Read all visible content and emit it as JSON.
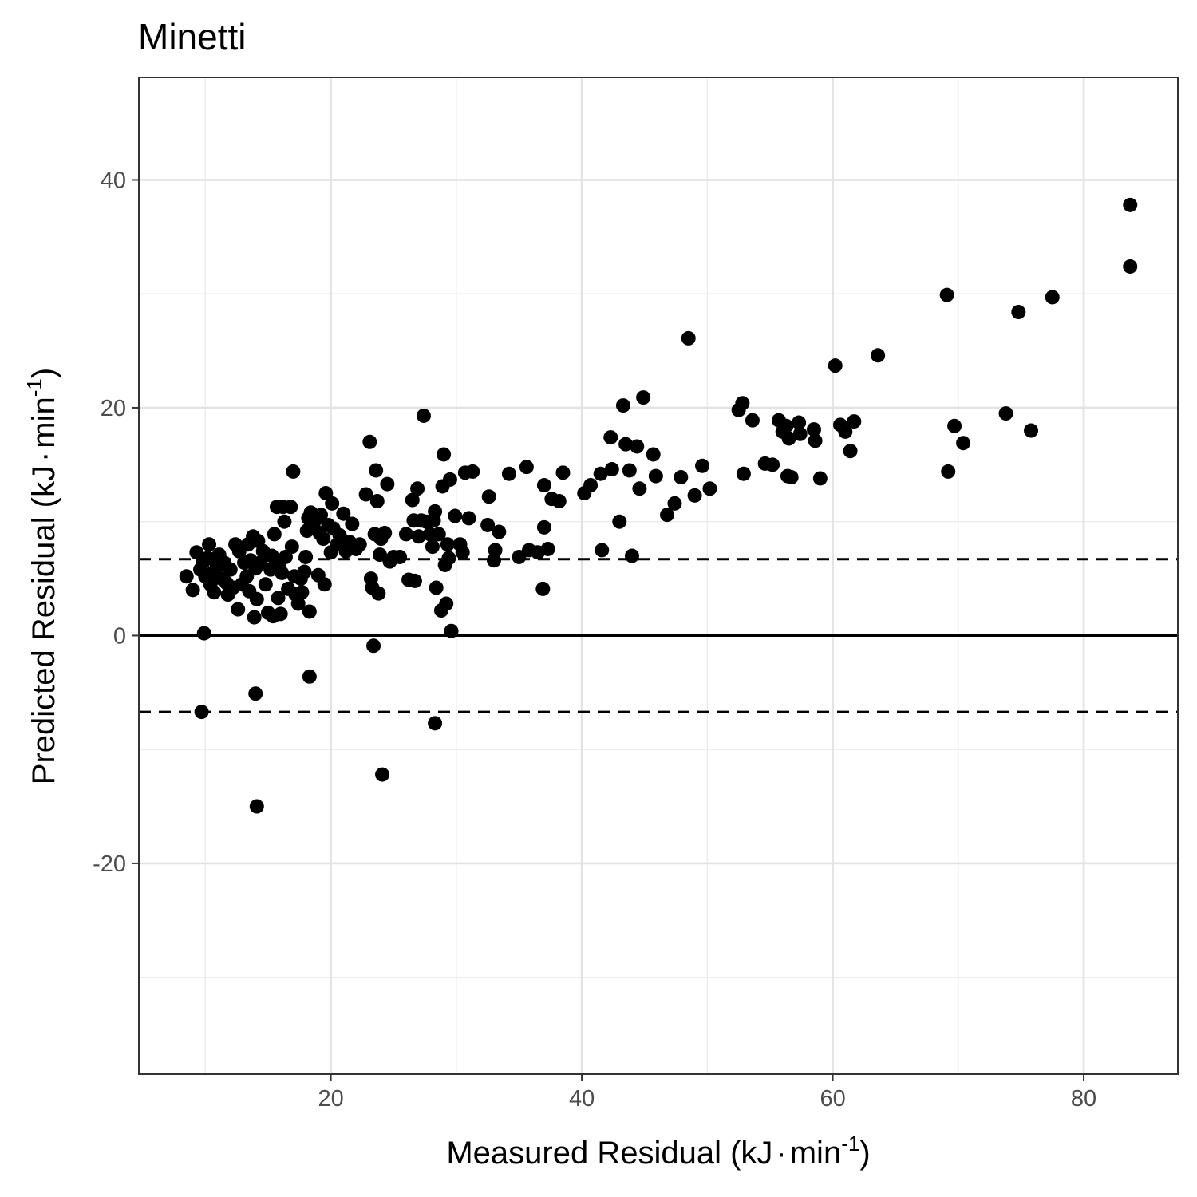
{
  "chart_data": {
    "type": "scatter",
    "title": "Minetti",
    "xlabel": "Measured Residual (kJ·min-1)",
    "xlabel_main": "Measured Residual (kJ",
    "xlabel_unit": "min",
    "xlabel_exp": "-1",
    "xlabel_close": ")",
    "ylabel": "Predicted Residual (kJ·min-1)",
    "ylabel_main": "Predicted Residual (kJ",
    "ylabel_unit": "min",
    "ylabel_exp": "-1",
    "ylabel_close": ")",
    "xlim": [
      4.7,
      87.5
    ],
    "ylim": [
      -38.5,
      49.0
    ],
    "x_ticks": [
      20,
      40,
      60,
      80
    ],
    "x_tick_labels": [
      "20",
      "40",
      "60",
      "80"
    ],
    "x_minor_ticks": [
      10,
      30,
      50,
      70
    ],
    "y_ticks": [
      -20,
      0,
      20,
      40
    ],
    "y_tick_labels": [
      "-20",
      "0",
      "20",
      "40"
    ],
    "y_minor_ticks": [
      -30,
      -10,
      10,
      30
    ],
    "grid": true,
    "reference_lines": [
      {
        "y": 0,
        "style": "solid"
      },
      {
        "y": 6.7,
        "style": "dashed"
      },
      {
        "y": -6.7,
        "style": "dashed"
      }
    ],
    "point_color": "#000000",
    "points": [
      [
        8.5,
        5.2
      ],
      [
        9.0,
        4.0
      ],
      [
        9.3,
        7.3
      ],
      [
        9.6,
        5.8
      ],
      [
        9.8,
        6.4
      ],
      [
        9.9,
        0.2
      ],
      [
        9.7,
        -6.7
      ],
      [
        10.0,
        5.2
      ],
      [
        10.2,
        6.8
      ],
      [
        10.3,
        8.0
      ],
      [
        10.4,
        4.5
      ],
      [
        10.6,
        5.5
      ],
      [
        10.7,
        3.8
      ],
      [
        10.9,
        6.0
      ],
      [
        11.1,
        7.1
      ],
      [
        11.3,
        5.0
      ],
      [
        11.5,
        6.4
      ],
      [
        11.7,
        4.6
      ],
      [
        11.8,
        3.6
      ],
      [
        12.0,
        5.8
      ],
      [
        12.2,
        4.2
      ],
      [
        12.4,
        8.0
      ],
      [
        12.6,
        2.3
      ],
      [
        12.7,
        7.4
      ],
      [
        12.9,
        4.5
      ],
      [
        13.1,
        6.4
      ],
      [
        13.3,
        5.2
      ],
      [
        13.4,
        8.0
      ],
      [
        13.5,
        3.9
      ],
      [
        13.6,
        6.6
      ],
      [
        13.8,
        8.7
      ],
      [
        13.9,
        1.6
      ],
      [
        14.0,
        5.9
      ],
      [
        14.1,
        3.2
      ],
      [
        14.2,
        8.3
      ],
      [
        14.0,
        -5.1
      ],
      [
        14.1,
        -15.0
      ],
      [
        14.4,
        6.4
      ],
      [
        14.6,
        7.4
      ],
      [
        14.8,
        4.5
      ],
      [
        15.0,
        2.0
      ],
      [
        15.2,
        5.8
      ],
      [
        15.3,
        7.0
      ],
      [
        15.4,
        1.7
      ],
      [
        15.5,
        8.9
      ],
      [
        15.7,
        11.3
      ],
      [
        15.8,
        3.3
      ],
      [
        15.9,
        6.3
      ],
      [
        16.0,
        1.9
      ],
      [
        16.1,
        5.5
      ],
      [
        16.2,
        11.3
      ],
      [
        16.3,
        10.0
      ],
      [
        16.4,
        6.9
      ],
      [
        16.6,
        4.1
      ],
      [
        16.8,
        11.3
      ],
      [
        16.9,
        7.8
      ],
      [
        17.0,
        14.4
      ],
      [
        17.1,
        5.2
      ],
      [
        17.2,
        3.6
      ],
      [
        17.4,
        2.8
      ],
      [
        17.6,
        5.0
      ],
      [
        17.7,
        3.8
      ],
      [
        17.9,
        5.6
      ],
      [
        18.0,
        6.9
      ],
      [
        18.1,
        9.2
      ],
      [
        18.2,
        10.3
      ],
      [
        18.3,
        2.1
      ],
      [
        18.3,
        -3.6
      ],
      [
        18.4,
        10.8
      ],
      [
        18.6,
        9.6
      ],
      [
        18.8,
        10.2
      ],
      [
        19.0,
        5.3
      ],
      [
        19.1,
        9.0
      ],
      [
        19.2,
        10.6
      ],
      [
        19.4,
        8.5
      ],
      [
        19.5,
        4.5
      ],
      [
        19.6,
        12.5
      ],
      [
        19.8,
        9.7
      ],
      [
        20.0,
        7.3
      ],
      [
        20.1,
        11.6
      ],
      [
        20.2,
        9.4
      ],
      [
        20.5,
        8.0
      ],
      [
        20.7,
        8.8
      ],
      [
        21.0,
        10.7
      ],
      [
        21.2,
        7.4
      ],
      [
        21.5,
        8.2
      ],
      [
        21.7,
        9.8
      ],
      [
        22.0,
        7.6
      ],
      [
        22.3,
        8.0
      ],
      [
        22.8,
        12.4
      ],
      [
        23.1,
        17.0
      ],
      [
        23.2,
        5.0
      ],
      [
        23.3,
        4.2
      ],
      [
        23.4,
        -0.9
      ],
      [
        23.5,
        8.9
      ],
      [
        23.6,
        14.5
      ],
      [
        23.7,
        11.8
      ],
      [
        23.8,
        3.7
      ],
      [
        23.9,
        7.1
      ],
      [
        24.0,
        8.5
      ],
      [
        24.1,
        -12.2
      ],
      [
        24.3,
        9.0
      ],
      [
        24.5,
        13.3
      ],
      [
        24.7,
        6.5
      ],
      [
        25.0,
        6.9
      ],
      [
        25.5,
        6.9
      ],
      [
        26.0,
        8.9
      ],
      [
        26.2,
        4.9
      ],
      [
        26.5,
        11.9
      ],
      [
        26.6,
        10.1
      ],
      [
        26.7,
        4.8
      ],
      [
        26.9,
        12.9
      ],
      [
        27.0,
        8.7
      ],
      [
        27.2,
        10.1
      ],
      [
        27.4,
        19.3
      ],
      [
        27.6,
        10.0
      ],
      [
        27.9,
        8.9
      ],
      [
        28.1,
        7.8
      ],
      [
        28.2,
        10.1
      ],
      [
        28.3,
        10.9
      ],
      [
        28.3,
        -7.7
      ],
      [
        28.4,
        4.2
      ],
      [
        28.6,
        8.9
      ],
      [
        28.8,
        2.2
      ],
      [
        28.9,
        13.1
      ],
      [
        29.0,
        15.9
      ],
      [
        29.1,
        6.2
      ],
      [
        29.2,
        2.8
      ],
      [
        29.3,
        8.0
      ],
      [
        29.4,
        6.8
      ],
      [
        29.5,
        13.7
      ],
      [
        29.6,
        0.4
      ],
      [
        29.9,
        10.5
      ],
      [
        30.3,
        8.0
      ],
      [
        30.5,
        7.3
      ],
      [
        30.7,
        14.3
      ],
      [
        31.0,
        10.3
      ],
      [
        31.3,
        14.4
      ],
      [
        32.5,
        9.7
      ],
      [
        32.6,
        12.2
      ],
      [
        33.0,
        6.6
      ],
      [
        33.1,
        7.5
      ],
      [
        33.4,
        9.1
      ],
      [
        34.2,
        14.2
      ],
      [
        35.0,
        6.9
      ],
      [
        35.6,
        14.8
      ],
      [
        35.8,
        7.5
      ],
      [
        36.5,
        7.3
      ],
      [
        36.9,
        4.1
      ],
      [
        37.0,
        9.5
      ],
      [
        37.0,
        13.2
      ],
      [
        37.3,
        7.6
      ],
      [
        37.6,
        12.0
      ],
      [
        38.2,
        11.8
      ],
      [
        38.5,
        14.3
      ],
      [
        40.2,
        12.5
      ],
      [
        40.7,
        13.2
      ],
      [
        41.5,
        14.2
      ],
      [
        41.6,
        7.5
      ],
      [
        42.3,
        17.4
      ],
      [
        42.4,
        14.6
      ],
      [
        43.0,
        10.0
      ],
      [
        43.3,
        20.2
      ],
      [
        43.5,
        16.8
      ],
      [
        43.8,
        14.5
      ],
      [
        44.0,
        7.0
      ],
      [
        44.4,
        16.6
      ],
      [
        44.6,
        12.9
      ],
      [
        44.9,
        20.9
      ],
      [
        45.7,
        15.9
      ],
      [
        45.9,
        14.0
      ],
      [
        46.8,
        10.6
      ],
      [
        47.4,
        11.6
      ],
      [
        47.9,
        13.9
      ],
      [
        48.5,
        26.1
      ],
      [
        49.0,
        12.3
      ],
      [
        49.6,
        14.9
      ],
      [
        50.2,
        12.9
      ],
      [
        52.5,
        19.8
      ],
      [
        52.8,
        20.4
      ],
      [
        52.9,
        14.2
      ],
      [
        53.6,
        18.9
      ],
      [
        54.6,
        15.1
      ],
      [
        55.2,
        15.0
      ],
      [
        55.7,
        18.9
      ],
      [
        56.0,
        17.9
      ],
      [
        56.3,
        18.4
      ],
      [
        56.4,
        14.0
      ],
      [
        56.5,
        17.3
      ],
      [
        56.7,
        13.9
      ],
      [
        57.3,
        18.7
      ],
      [
        57.4,
        17.7
      ],
      [
        58.5,
        18.1
      ],
      [
        58.6,
        17.1
      ],
      [
        59.0,
        13.8
      ],
      [
        60.2,
        23.7
      ],
      [
        60.6,
        18.5
      ],
      [
        61.0,
        17.9
      ],
      [
        61.4,
        16.2
      ],
      [
        61.7,
        18.8
      ],
      [
        63.6,
        24.6
      ],
      [
        69.1,
        29.9
      ],
      [
        69.2,
        14.4
      ],
      [
        69.7,
        18.4
      ],
      [
        70.4,
        16.9
      ],
      [
        73.8,
        19.5
      ],
      [
        74.8,
        28.4
      ],
      [
        75.8,
        18.0
      ],
      [
        77.5,
        29.7
      ],
      [
        83.7,
        37.8
      ],
      [
        83.7,
        32.4
      ]
    ]
  }
}
